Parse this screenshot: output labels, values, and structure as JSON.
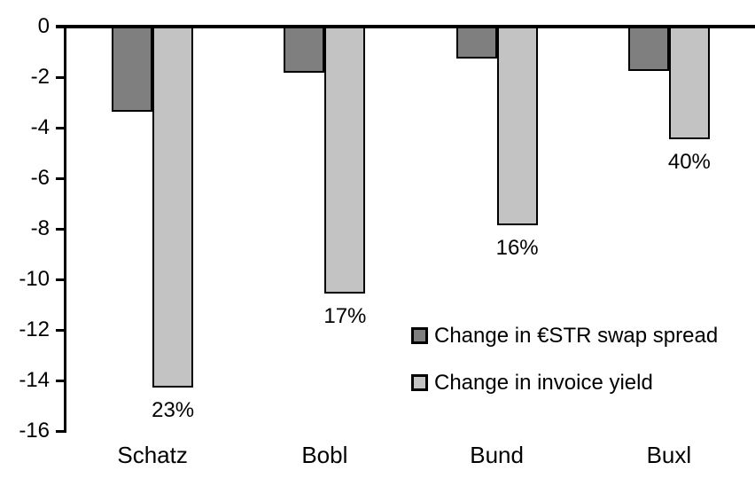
{
  "chart_data": {
    "type": "bar",
    "title": "",
    "xlabel": "",
    "ylabel": "",
    "categories": [
      "Schatz",
      "Bobl",
      "Bund",
      "Buxl"
    ],
    "series": [
      {
        "name": "Change in €STR swap spread",
        "color": "#7F7F7F",
        "values": [
          -3.3,
          -1.75,
          -1.2,
          -1.7
        ]
      },
      {
        "name": "Change in invoice yield",
        "color": "#C3C3C3",
        "values": [
          -14.2,
          -10.5,
          -7.8,
          -4.4
        ],
        "point_labels": [
          "23%",
          "17%",
          "16%",
          "40%"
        ]
      }
    ],
    "ylim": [
      -16,
      0
    ],
    "yticks": [
      "0",
      "-2",
      "-4",
      "-6",
      "-8",
      "-10",
      "-12",
      "-14",
      "-16"
    ],
    "grid": false,
    "legend_position": "inside-center-right",
    "axis_color": "#000000",
    "bar_border_color": "#000000",
    "background_color": "#FFFFFF"
  }
}
